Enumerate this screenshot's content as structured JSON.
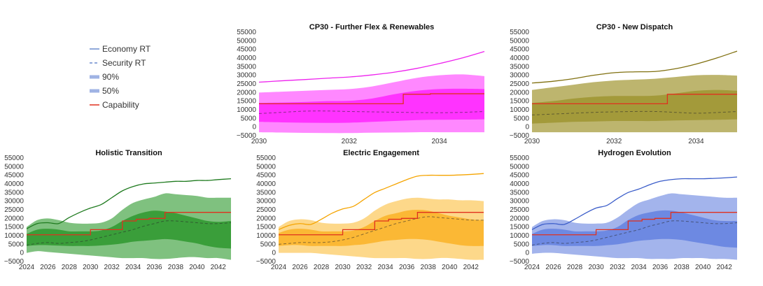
{
  "legend": {
    "items": [
      {
        "label": "Economy RT",
        "style": "solid",
        "color": "#6b8cce"
      },
      {
        "label": "Security RT",
        "style": "dashed",
        "color": "#6b8cce"
      },
      {
        "label": "90%",
        "style": "band",
        "color": "#9fb3e4"
      },
      {
        "label": "50%",
        "style": "band",
        "color": "#9fb3e4"
      },
      {
        "label": "Capability",
        "style": "solid",
        "color": "#e0301e"
      }
    ]
  },
  "chart_data": [
    {
      "title": "CP30 - Further Flex & Renewables",
      "type": "area",
      "colors": {
        "line": "#ee22ee",
        "band90": "#ff88ff",
        "band50": "#ff33ff",
        "capability": "#e0301e"
      },
      "xlim": [
        2030,
        2035
      ],
      "xticks": [
        2030,
        2032,
        2034
      ],
      "ylim": [
        -5000,
        55000
      ],
      "yticks": [
        -5000,
        0,
        5000,
        10000,
        15000,
        20000,
        25000,
        30000,
        35000,
        40000,
        45000,
        50000,
        55000
      ],
      "x": [
        2030,
        2030.5,
        2031,
        2031.5,
        2032,
        2032.5,
        2033,
        2033.5,
        2034,
        2034.5,
        2035
      ],
      "economy_rt": [
        26000,
        26800,
        27500,
        28300,
        29000,
        30200,
        31800,
        34000,
        36800,
        40000,
        43800
      ],
      "security_rt": [
        7800,
        8500,
        9200,
        9300,
        9000,
        8800,
        8600,
        8400,
        8300,
        8500,
        9000
      ],
      "band90_low": [
        -3000,
        -3200,
        -3400,
        -3500,
        -3500,
        -3300,
        -3200,
        -3000,
        -3000,
        -3000,
        -3000
      ],
      "band90_high": [
        20000,
        20500,
        21000,
        21500,
        22000,
        23500,
        26000,
        28500,
        30000,
        30500,
        29500
      ],
      "band50_low": [
        3000,
        2700,
        2500,
        2400,
        2500,
        3000,
        3500,
        4000,
        4200,
        4300,
        4500
      ],
      "band50_high": [
        14000,
        14200,
        14500,
        15000,
        15200,
        16500,
        19000,
        21000,
        22000,
        22200,
        22000
      ],
      "capability": [
        [
          2030,
          13500
        ],
        [
          2033.2,
          13500
        ],
        [
          2033.2,
          19000
        ],
        [
          2033.8,
          19000
        ],
        [
          2033.8,
          19300
        ],
        [
          2035,
          19300
        ]
      ]
    },
    {
      "title": "CP30 - New Dispatch",
      "type": "area",
      "colors": {
        "line": "#807010",
        "band90": "#bdb56e",
        "band50": "#a39a3a",
        "capability": "#e0301e"
      },
      "xlim": [
        2030,
        2035
      ],
      "xticks": [
        2030,
        2032,
        2034
      ],
      "ylim": [
        -5000,
        55000
      ],
      "yticks": [
        -5000,
        0,
        5000,
        10000,
        15000,
        20000,
        25000,
        30000,
        35000,
        40000,
        45000,
        50000,
        55000
      ],
      "x": [
        2030,
        2030.5,
        2031,
        2031.5,
        2032,
        2032.5,
        2033,
        2033.5,
        2034,
        2034.5,
        2035
      ],
      "economy_rt": [
        25500,
        26500,
        28000,
        30000,
        31500,
        32000,
        32200,
        33800,
        36500,
        40000,
        44000
      ],
      "security_rt": [
        7000,
        7500,
        8000,
        8500,
        8800,
        9000,
        9000,
        8500,
        8000,
        8400,
        9000
      ],
      "band90_low": [
        -3000,
        -3000,
        -3000,
        -3000,
        -3000,
        -3000,
        -3000,
        -3000,
        -3000,
        -3000,
        -3000
      ],
      "band90_high": [
        21500,
        23000,
        24500,
        26000,
        27000,
        27500,
        28000,
        29000,
        30000,
        30200,
        29800
      ],
      "band50_low": [
        2000,
        2500,
        3000,
        3200,
        3500,
        3500,
        3500,
        3800,
        4000,
        4200,
        4500
      ],
      "band50_high": [
        14000,
        15000,
        16500,
        17500,
        18000,
        18000,
        18200,
        19500,
        21000,
        21500,
        21000
      ],
      "capability": [
        [
          2030,
          13500
        ],
        [
          2033.3,
          13500
        ],
        [
          2033.3,
          19000
        ],
        [
          2035,
          19000
        ]
      ]
    },
    {
      "title": "Holistic Transition",
      "type": "area",
      "colors": {
        "line": "#1e7a1e",
        "band90": "#7fc17f",
        "band50": "#3a9e3a",
        "capability": "#e0301e"
      },
      "xlim": [
        2024,
        2043.2
      ],
      "xticks": [
        2024,
        2026,
        2028,
        2030,
        2032,
        2034,
        2036,
        2038,
        2040,
        2042
      ],
      "ylim": [
        -5000,
        55000
      ],
      "yticks": [
        -5000,
        0,
        5000,
        10000,
        15000,
        20000,
        25000,
        30000,
        35000,
        40000,
        45000,
        50000,
        55000
      ],
      "x": [
        2024,
        2025,
        2026,
        2027,
        2028,
        2029,
        2030,
        2031,
        2032,
        2033,
        2034,
        2035,
        2036,
        2037,
        2038,
        2039,
        2040,
        2041,
        2042,
        2043.2
      ],
      "economy_rt": [
        14000,
        17000,
        17500,
        17000,
        20500,
        23500,
        26000,
        28000,
        32000,
        36000,
        38500,
        40000,
        40500,
        41000,
        41500,
        41500,
        42000,
        42000,
        42500,
        43000
      ],
      "security_rt": [
        4500,
        5500,
        6000,
        5500,
        6000,
        6500,
        7500,
        9000,
        10500,
        12000,
        13500,
        15500,
        17000,
        18500,
        18500,
        18000,
        17500,
        17000,
        17000,
        17500
      ],
      "band90_low": [
        0,
        1000,
        500,
        0,
        -500,
        -1000,
        -1500,
        -2000,
        -2500,
        -3000,
        -3000,
        -3000,
        -3500,
        -3500,
        -3000,
        -2500,
        -2500,
        -3000,
        -3000,
        -4000
      ],
      "band90_high": [
        15000,
        19000,
        20000,
        19000,
        17500,
        17000,
        17000,
        17500,
        20000,
        25000,
        29000,
        31000,
        32500,
        34500,
        34000,
        33500,
        33000,
        32000,
        32000,
        32000
      ],
      "band50_low": [
        4000,
        4500,
        4500,
        4200,
        4000,
        4000,
        4000,
        4300,
        4800,
        5500,
        6500,
        7000,
        7500,
        8000,
        7500,
        6500,
        5500,
        4000,
        3000,
        2500
      ],
      "band50_high": [
        11000,
        13500,
        14000,
        13500,
        12500,
        12500,
        12500,
        13000,
        15000,
        18500,
        21500,
        23500,
        24500,
        24000,
        23000,
        21500,
        20000,
        18500,
        18000,
        18500
      ],
      "capability": [
        [
          2024,
          10500
        ],
        [
          2030,
          10500
        ],
        [
          2030,
          13500
        ],
        [
          2033,
          13500
        ],
        [
          2033,
          18500
        ],
        [
          2034.3,
          18500
        ],
        [
          2034.3,
          19500
        ],
        [
          2035.5,
          19500
        ],
        [
          2035.5,
          20000
        ],
        [
          2037,
          20000
        ],
        [
          2037,
          23500
        ],
        [
          2043.2,
          23500
        ]
      ]
    },
    {
      "title": "Electric Engagement",
      "type": "area",
      "colors": {
        "line": "#f5a400",
        "band90": "#fdd88a",
        "band50": "#fbb835",
        "capability": "#e0301e"
      },
      "xlim": [
        2024,
        2043.2
      ],
      "xticks": [
        2024,
        2026,
        2028,
        2030,
        2032,
        2034,
        2036,
        2038,
        2040,
        2042
      ],
      "ylim": [
        -5000,
        55000
      ],
      "yticks": [
        -5000,
        0,
        5000,
        10000,
        15000,
        20000,
        25000,
        30000,
        35000,
        40000,
        45000,
        50000,
        55000
      ],
      "x": [
        2024,
        2025,
        2026,
        2027,
        2028,
        2029,
        2030,
        2031,
        2032,
        2033,
        2034,
        2035,
        2036,
        2037,
        2038,
        2039,
        2040,
        2041,
        2042,
        2043.2
      ],
      "economy_rt": [
        13500,
        16000,
        17000,
        16500,
        19500,
        23000,
        25500,
        27000,
        31000,
        35000,
        37500,
        40000,
        42500,
        44500,
        45000,
        45000,
        45000,
        45200,
        45500,
        46000
      ],
      "security_rt": [
        5000,
        5500,
        6000,
        6000,
        6000,
        6500,
        7500,
        9000,
        11000,
        13000,
        15000,
        17000,
        18500,
        20000,
        21000,
        20500,
        20000,
        19500,
        19000,
        19000
      ],
      "band90_low": [
        0,
        0,
        0,
        0,
        -500,
        -1000,
        -1500,
        -2000,
        -2500,
        -3000,
        -3000,
        -3000,
        -3000,
        -3500,
        -3500,
        -3000,
        -3000,
        -3500,
        -4000,
        -4000
      ],
      "band90_high": [
        15000,
        18500,
        19500,
        19000,
        17500,
        17000,
        17000,
        17500,
        20000,
        24500,
        28000,
        30000,
        31500,
        32000,
        31500,
        31000,
        31000,
        30500,
        30500,
        30000
      ],
      "band50_low": [
        4000,
        4500,
        4500,
        4000,
        4000,
        4000,
        4000,
        4500,
        5000,
        6000,
        7000,
        7500,
        8000,
        8000,
        7500,
        6500,
        5500,
        4500,
        4000,
        4000
      ],
      "band50_high": [
        11500,
        13500,
        14000,
        13500,
        12500,
        12500,
        12500,
        13000,
        15000,
        18500,
        21500,
        23000,
        24500,
        25000,
        24500,
        23000,
        21500,
        20500,
        19500,
        19000
      ],
      "capability": [
        [
          2024,
          10500
        ],
        [
          2030,
          10500
        ],
        [
          2030,
          13500
        ],
        [
          2033,
          13500
        ],
        [
          2033,
          18500
        ],
        [
          2034.3,
          18500
        ],
        [
          2034.3,
          19500
        ],
        [
          2035.5,
          19500
        ],
        [
          2035.5,
          20000
        ],
        [
          2037,
          20000
        ],
        [
          2037,
          23500
        ],
        [
          2043.2,
          23500
        ]
      ]
    },
    {
      "title": "Hydrogen Evolution",
      "type": "area",
      "colors": {
        "line": "#3a5cc9",
        "band90": "#a3b4ec",
        "band50": "#6d89e2",
        "capability": "#e0301e"
      },
      "xlim": [
        2024,
        2043.2
      ],
      "xticks": [
        2024,
        2026,
        2028,
        2030,
        2032,
        2034,
        2036,
        2038,
        2040,
        2042
      ],
      "ylim": [
        -5000,
        55000
      ],
      "yticks": [
        -5000,
        0,
        5000,
        10000,
        15000,
        20000,
        25000,
        30000,
        35000,
        40000,
        45000,
        50000,
        55000
      ],
      "x": [
        2024,
        2025,
        2026,
        2027,
        2028,
        2029,
        2030,
        2031,
        2032,
        2033,
        2034,
        2035,
        2036,
        2037,
        2038,
        2039,
        2040,
        2041,
        2042,
        2043.2
      ],
      "economy_rt": [
        13500,
        16500,
        17000,
        16500,
        19500,
        23000,
        26000,
        27500,
        31500,
        35000,
        37000,
        39500,
        41500,
        42500,
        43000,
        43000,
        43000,
        43200,
        43500,
        44000
      ],
      "security_rt": [
        4500,
        5500,
        6000,
        5500,
        6000,
        6500,
        7500,
        9000,
        10500,
        12000,
        13500,
        15500,
        17000,
        18500,
        18500,
        18000,
        17500,
        17000,
        17000,
        17500
      ],
      "band90_low": [
        -500,
        0,
        0,
        -500,
        -1000,
        -1500,
        -2000,
        -2500,
        -3000,
        -3000,
        -3000,
        -3500,
        -3500,
        -3500,
        -3000,
        -3000,
        -3000,
        -3500,
        -3500,
        -4000
      ],
      "band90_high": [
        15000,
        18500,
        19500,
        19000,
        17500,
        17000,
        17000,
        17500,
        20500,
        25000,
        29000,
        31000,
        33000,
        34500,
        34000,
        33500,
        33000,
        32500,
        32000,
        32000
      ],
      "band50_low": [
        4000,
        4500,
        4500,
        4000,
        4000,
        4000,
        4000,
        4500,
        5000,
        6000,
        7000,
        7500,
        8000,
        8000,
        7500,
        6500,
        5500,
        4500,
        3500,
        3000
      ],
      "band50_high": [
        11000,
        13500,
        14000,
        13500,
        12500,
        12500,
        12500,
        13000,
        15000,
        19000,
        22000,
        23500,
        24500,
        24500,
        23500,
        22000,
        20500,
        19000,
        18500,
        18500
      ],
      "capability": [
        [
          2024,
          10500
        ],
        [
          2030,
          10500
        ],
        [
          2030,
          13500
        ],
        [
          2033,
          13500
        ],
        [
          2033,
          18500
        ],
        [
          2034.3,
          18500
        ],
        [
          2034.3,
          19500
        ],
        [
          2035.5,
          19500
        ],
        [
          2035.5,
          20000
        ],
        [
          2037,
          20000
        ],
        [
          2037,
          23500
        ],
        [
          2043.2,
          23500
        ]
      ]
    }
  ]
}
